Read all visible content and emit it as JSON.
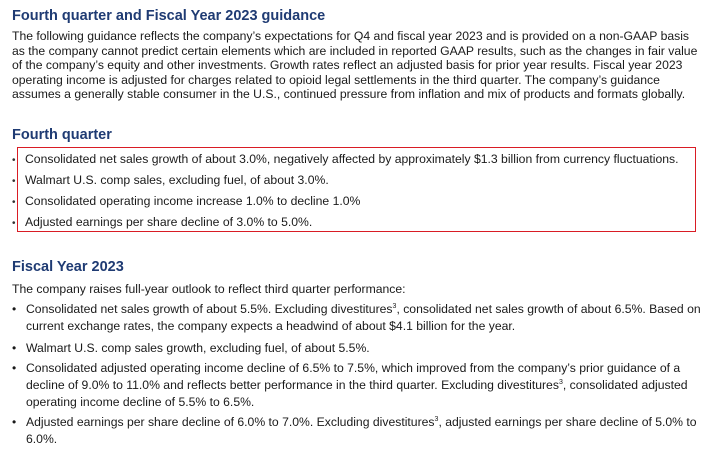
{
  "guidance": {
    "title": "Fourth quarter and Fiscal Year 2023 guidance",
    "intro": "The following guidance reflects the company’s expectations for Q4 and fiscal year 2023 and is provided on a non-GAAP basis as the company cannot predict certain elements which are included in reported GAAP results, such as the changes in fair value of the company’s equity and other investments. Growth rates reflect an adjusted basis for prior year results. Fiscal year 2023 operating income is adjusted for charges related to opioid legal settlements in the third quarter. The company’s guidance assumes a generally stable consumer in the U.S., continued pressure from inflation and mix of products and formats globally."
  },
  "fourth_quarter": {
    "title": "Fourth quarter",
    "bullet_symbol": "•",
    "items": [
      "Consolidated net sales growth of about 3.0%, negatively affected by approximately $1.3 billion from currency fluctuations.",
      "Walmart U.S. comp sales, excluding fuel, of about 3.0%.",
      "Consolidated operating income increase 1.0% to decline 1.0%",
      "Adjusted earnings per share decline of 3.0% to 5.0%."
    ]
  },
  "fiscal_year": {
    "title": "Fiscal Year 2023",
    "intro": "The company raises full-year outlook to reflect third quarter performance:",
    "bullet_symbol": "•",
    "footnote_marker": "3",
    "items": [
      {
        "a": "Consolidated net sales growth of about 5.5%. Excluding divestitures",
        "b": ", consolidated net sales growth of about 6.5%. Based on current exchange rates, the company expects a headwind of about $4.1 billion for the year."
      },
      {
        "a": "Walmart U.S. comp sales growth, excluding fuel, of about 5.5%."
      },
      {
        "a": "Consolidated adjusted operating income decline of 6.5% to 7.5%, which improved from the company’s prior guidance of a decline of 9.0% to 11.0% and reflects better performance in the third quarter. Excluding divestitures",
        "b": ", consolidated adjusted operating income decline of 5.5% to 6.5%."
      },
      {
        "a": "Adjusted earnings per share decline of 6.0% to 7.0%. Excluding divestitures",
        "b": ", adjusted earnings per share decline of 5.0% to 6.0%."
      }
    ]
  }
}
